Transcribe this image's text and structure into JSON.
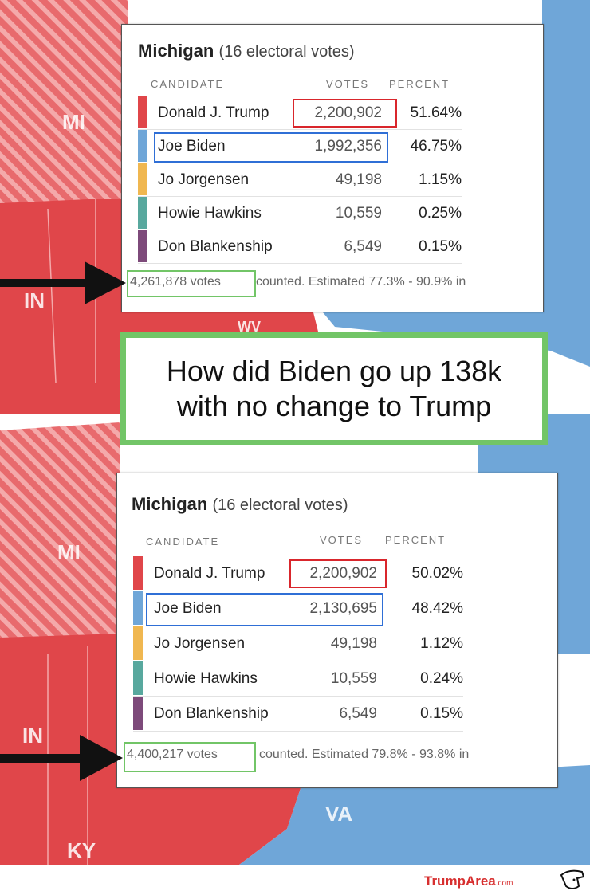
{
  "colors": {
    "trump_red": "#e0464a",
    "biden_blue": "#6fa6d8",
    "jorgensen": "#f0b750",
    "hawkins": "#58a89e",
    "blankenship": "#7d4a7a",
    "highlight_red": "#d9262c",
    "highlight_blue": "#2f6fd6",
    "highlight_green": "#72c567"
  },
  "map_labels": {
    "top": {
      "mi": "MI",
      "in": "IN",
      "wv": "WV"
    },
    "bottom": {
      "mi": "MI",
      "in": "IN",
      "ky": "KY",
      "va": "VA"
    }
  },
  "before": {
    "state": "Michigan",
    "electoral": "(16 electoral votes)",
    "headers": {
      "candidate": "CANDIDATE",
      "votes": "VOTES",
      "percent": "PERCENT"
    },
    "rows": [
      {
        "name": "Donald J. Trump",
        "votes": "2,200,902",
        "percent": "51.64%"
      },
      {
        "name": "Joe Biden",
        "votes": "1,992,356",
        "percent": "46.75%"
      },
      {
        "name": "Jo Jorgensen",
        "votes": "49,198",
        "percent": "1.15%"
      },
      {
        "name": "Howie Hawkins",
        "votes": "10,559",
        "percent": "0.25%"
      },
      {
        "name": "Don Blankenship",
        "votes": "6,549",
        "percent": "0.15%"
      }
    ],
    "total": "4,261,878 votes",
    "footer_rest": "counted. Estimated 77.3% - 90.9% in"
  },
  "after": {
    "state": "Michigan",
    "electoral": "(16 electoral votes)",
    "headers": {
      "candidate": "CANDIDATE",
      "votes": "VOTES",
      "percent": "PERCENT"
    },
    "rows": [
      {
        "name": "Donald J. Trump",
        "votes": "2,200,902",
        "percent": "50.02%"
      },
      {
        "name": "Joe Biden",
        "votes": "2,130,695",
        "percent": "48.42%"
      },
      {
        "name": "Jo Jorgensen",
        "votes": "49,198",
        "percent": "1.12%"
      },
      {
        "name": "Howie Hawkins",
        "votes": "10,559",
        "percent": "0.24%"
      },
      {
        "name": "Don Blankenship",
        "votes": "6,549",
        "percent": "0.15%"
      }
    ],
    "total": "4,400,217 votes",
    "footer_rest": "counted. Estimated 79.8% - 93.8% in"
  },
  "callout": "How did Biden go up 138k\nwith no change to Trump",
  "brand": {
    "name": "TrumpArea",
    "suffix": ".com"
  }
}
